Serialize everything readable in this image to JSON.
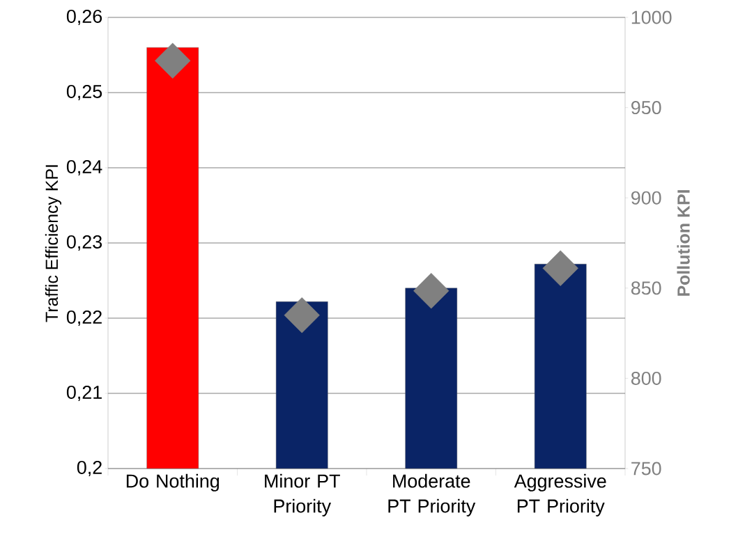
{
  "chart_data": {
    "type": "bar",
    "categories": [
      "Do Nothing",
      "Minor PT Priority",
      "Moderate PT Priority",
      "Aggressive PT Priority"
    ],
    "ylabel": "Traffic Efficiency KPI",
    "y2label": "Pollution KPI",
    "ylim": [
      0.2,
      0.26
    ],
    "yticks": [
      {
        "value": 0.2,
        "label": "0,2"
      },
      {
        "value": 0.21,
        "label": "0,21"
      },
      {
        "value": 0.22,
        "label": "0,22"
      },
      {
        "value": 0.23,
        "label": "0,23"
      },
      {
        "value": 0.24,
        "label": "0,24"
      },
      {
        "value": 0.25,
        "label": "0,25"
      },
      {
        "value": 0.26,
        "label": "0,26"
      }
    ],
    "y2lim": [
      750,
      1000
    ],
    "y2ticks": [
      750,
      800,
      850,
      900,
      950,
      1000
    ],
    "grid": "y",
    "series": [
      {
        "colors": [
          "#ff0000",
          "#0a2466",
          "#0a2466",
          "#0a2466"
        ],
        "values": [
          0.256,
          0.2222,
          0.224,
          0.2272
        ]
      },
      {
        "type": "scatter",
        "axis": "y2",
        "color": "#808080",
        "marker": "diamond",
        "values": [
          976,
          835,
          848.5,
          861
        ]
      }
    ]
  }
}
